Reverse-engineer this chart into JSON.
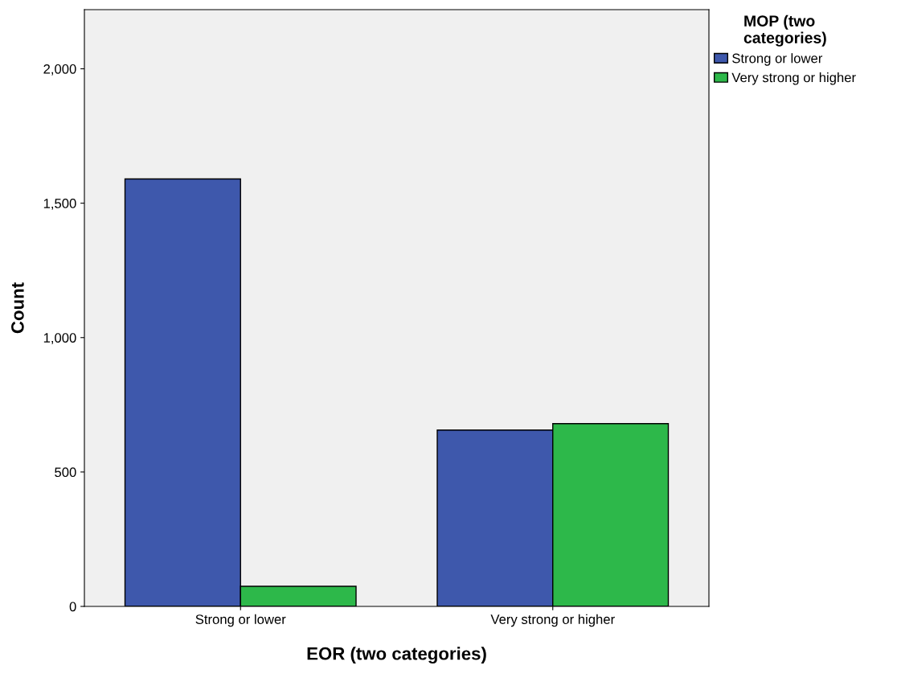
{
  "chart_data": {
    "type": "bar",
    "xlabel": "EOR (two categories)",
    "ylabel": "Count",
    "legend_title": "MOP (two\ncategories)",
    "categories": [
      "Strong or lower",
      "Very strong or higher"
    ],
    "series": [
      {
        "name": "Strong or lower",
        "color": "#3e58ac",
        "values": [
          1590,
          656
        ]
      },
      {
        "name": "Very strong or higher",
        "color": "#2db84a",
        "values": [
          75,
          680
        ]
      }
    ],
    "ylim": [
      0,
      2220
    ],
    "yticks": [
      {
        "value": 0,
        "label": "0"
      },
      {
        "value": 500,
        "label": "500"
      },
      {
        "value": 1000,
        "label": "1,000"
      },
      {
        "value": 1500,
        "label": "1,500"
      },
      {
        "value": 2000,
        "label": "2,000"
      }
    ],
    "grid": false,
    "legend": "top right"
  }
}
